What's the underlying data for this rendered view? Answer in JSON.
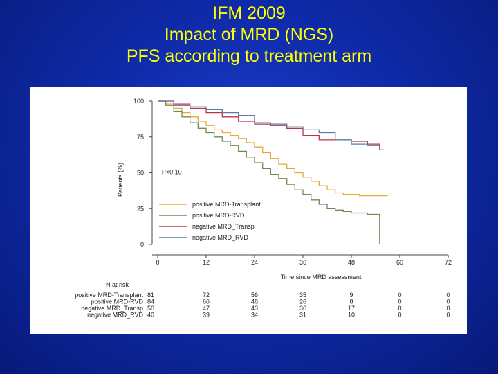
{
  "slide": {
    "title_lines": [
      "IFM 2009",
      "Impact of MRD (NGS)",
      "PFS according to treatment arm"
    ],
    "colors": {
      "background": "#0f2aa8",
      "title": "#ffff00"
    }
  },
  "chart_data": {
    "type": "line",
    "subtype": "kaplan-meier",
    "title": "",
    "xlabel": "Time since MRD assessment",
    "ylabel": "Patients (%)",
    "xlim": [
      0,
      72
    ],
    "ylim": [
      0,
      100
    ],
    "xticks": [
      "0",
      "12",
      "24",
      "36",
      "48",
      "60",
      "72"
    ],
    "yticks": [
      "0",
      "25",
      "50",
      "75",
      "100"
    ],
    "annotation": "P<0.10",
    "legend_position": "bottom-left",
    "series": [
      {
        "name": "positive MRD-Transplant",
        "color": "#e8a838",
        "x": [
          0,
          2,
          4,
          6,
          8,
          10,
          12,
          14,
          16,
          18,
          20,
          22,
          24,
          26,
          28,
          30,
          32,
          34,
          36,
          38,
          40,
          42,
          44,
          46,
          48,
          50,
          52,
          54,
          56,
          57
        ],
        "y": [
          100,
          98,
          95,
          92,
          89,
          86,
          83,
          80,
          78,
          76,
          74,
          71,
          68,
          64,
          60,
          56,
          53,
          50,
          47,
          44,
          41,
          38,
          36,
          35,
          35,
          34,
          34,
          34,
          34,
          34
        ]
      },
      {
        "name": "positive MRD-RVD",
        "color": "#6e8a55",
        "x": [
          0,
          2,
          4,
          6,
          8,
          10,
          12,
          14,
          16,
          18,
          20,
          22,
          24,
          26,
          28,
          30,
          32,
          34,
          36,
          38,
          40,
          42,
          44,
          46,
          48,
          50,
          52,
          54,
          55,
          55
        ],
        "y": [
          100,
          97,
          93,
          89,
          85,
          81,
          78,
          75,
          72,
          69,
          65,
          61,
          57,
          53,
          49,
          46,
          42,
          38,
          35,
          31,
          28,
          25,
          24,
          23,
          22,
          22,
          21,
          21,
          21,
          0
        ]
      },
      {
        "name": "negative MRD_Transp",
        "color": "#c0304a",
        "x": [
          0,
          4,
          8,
          12,
          16,
          20,
          24,
          28,
          32,
          36,
          40,
          44,
          48,
          52,
          55,
          56
        ],
        "y": [
          100,
          98,
          95,
          92,
          89,
          86,
          84,
          83,
          81,
          76,
          73,
          73,
          72,
          70,
          66,
          66
        ]
      },
      {
        "name": "negative MRD_RVD",
        "color": "#5a7aa8",
        "x": [
          0,
          4,
          8,
          12,
          16,
          20,
          24,
          28,
          32,
          36,
          40,
          44,
          48,
          52,
          55
        ],
        "y": [
          100,
          97,
          96,
          94,
          92,
          90,
          85,
          84,
          82,
          80,
          78,
          73,
          70,
          69,
          69
        ]
      }
    ],
    "at_risk": {
      "header": "N at risk",
      "rows": [
        {
          "label": "positive MRD-Transplant",
          "values": [
            "81",
            "72",
            "56",
            "35",
            "9",
            "0",
            "0"
          ]
        },
        {
          "label": "positive MRD-RVD",
          "values": [
            "84",
            "66",
            "48",
            "26",
            "8",
            "0",
            "0"
          ]
        },
        {
          "label": "negative MRD_Transp",
          "values": [
            "50",
            "47",
            "43",
            "36",
            "17",
            "0",
            "0"
          ]
        },
        {
          "label": "negative MRD_RVD",
          "values": [
            "40",
            "39",
            "34",
            "31",
            "10",
            "0",
            "0"
          ]
        }
      ]
    }
  }
}
